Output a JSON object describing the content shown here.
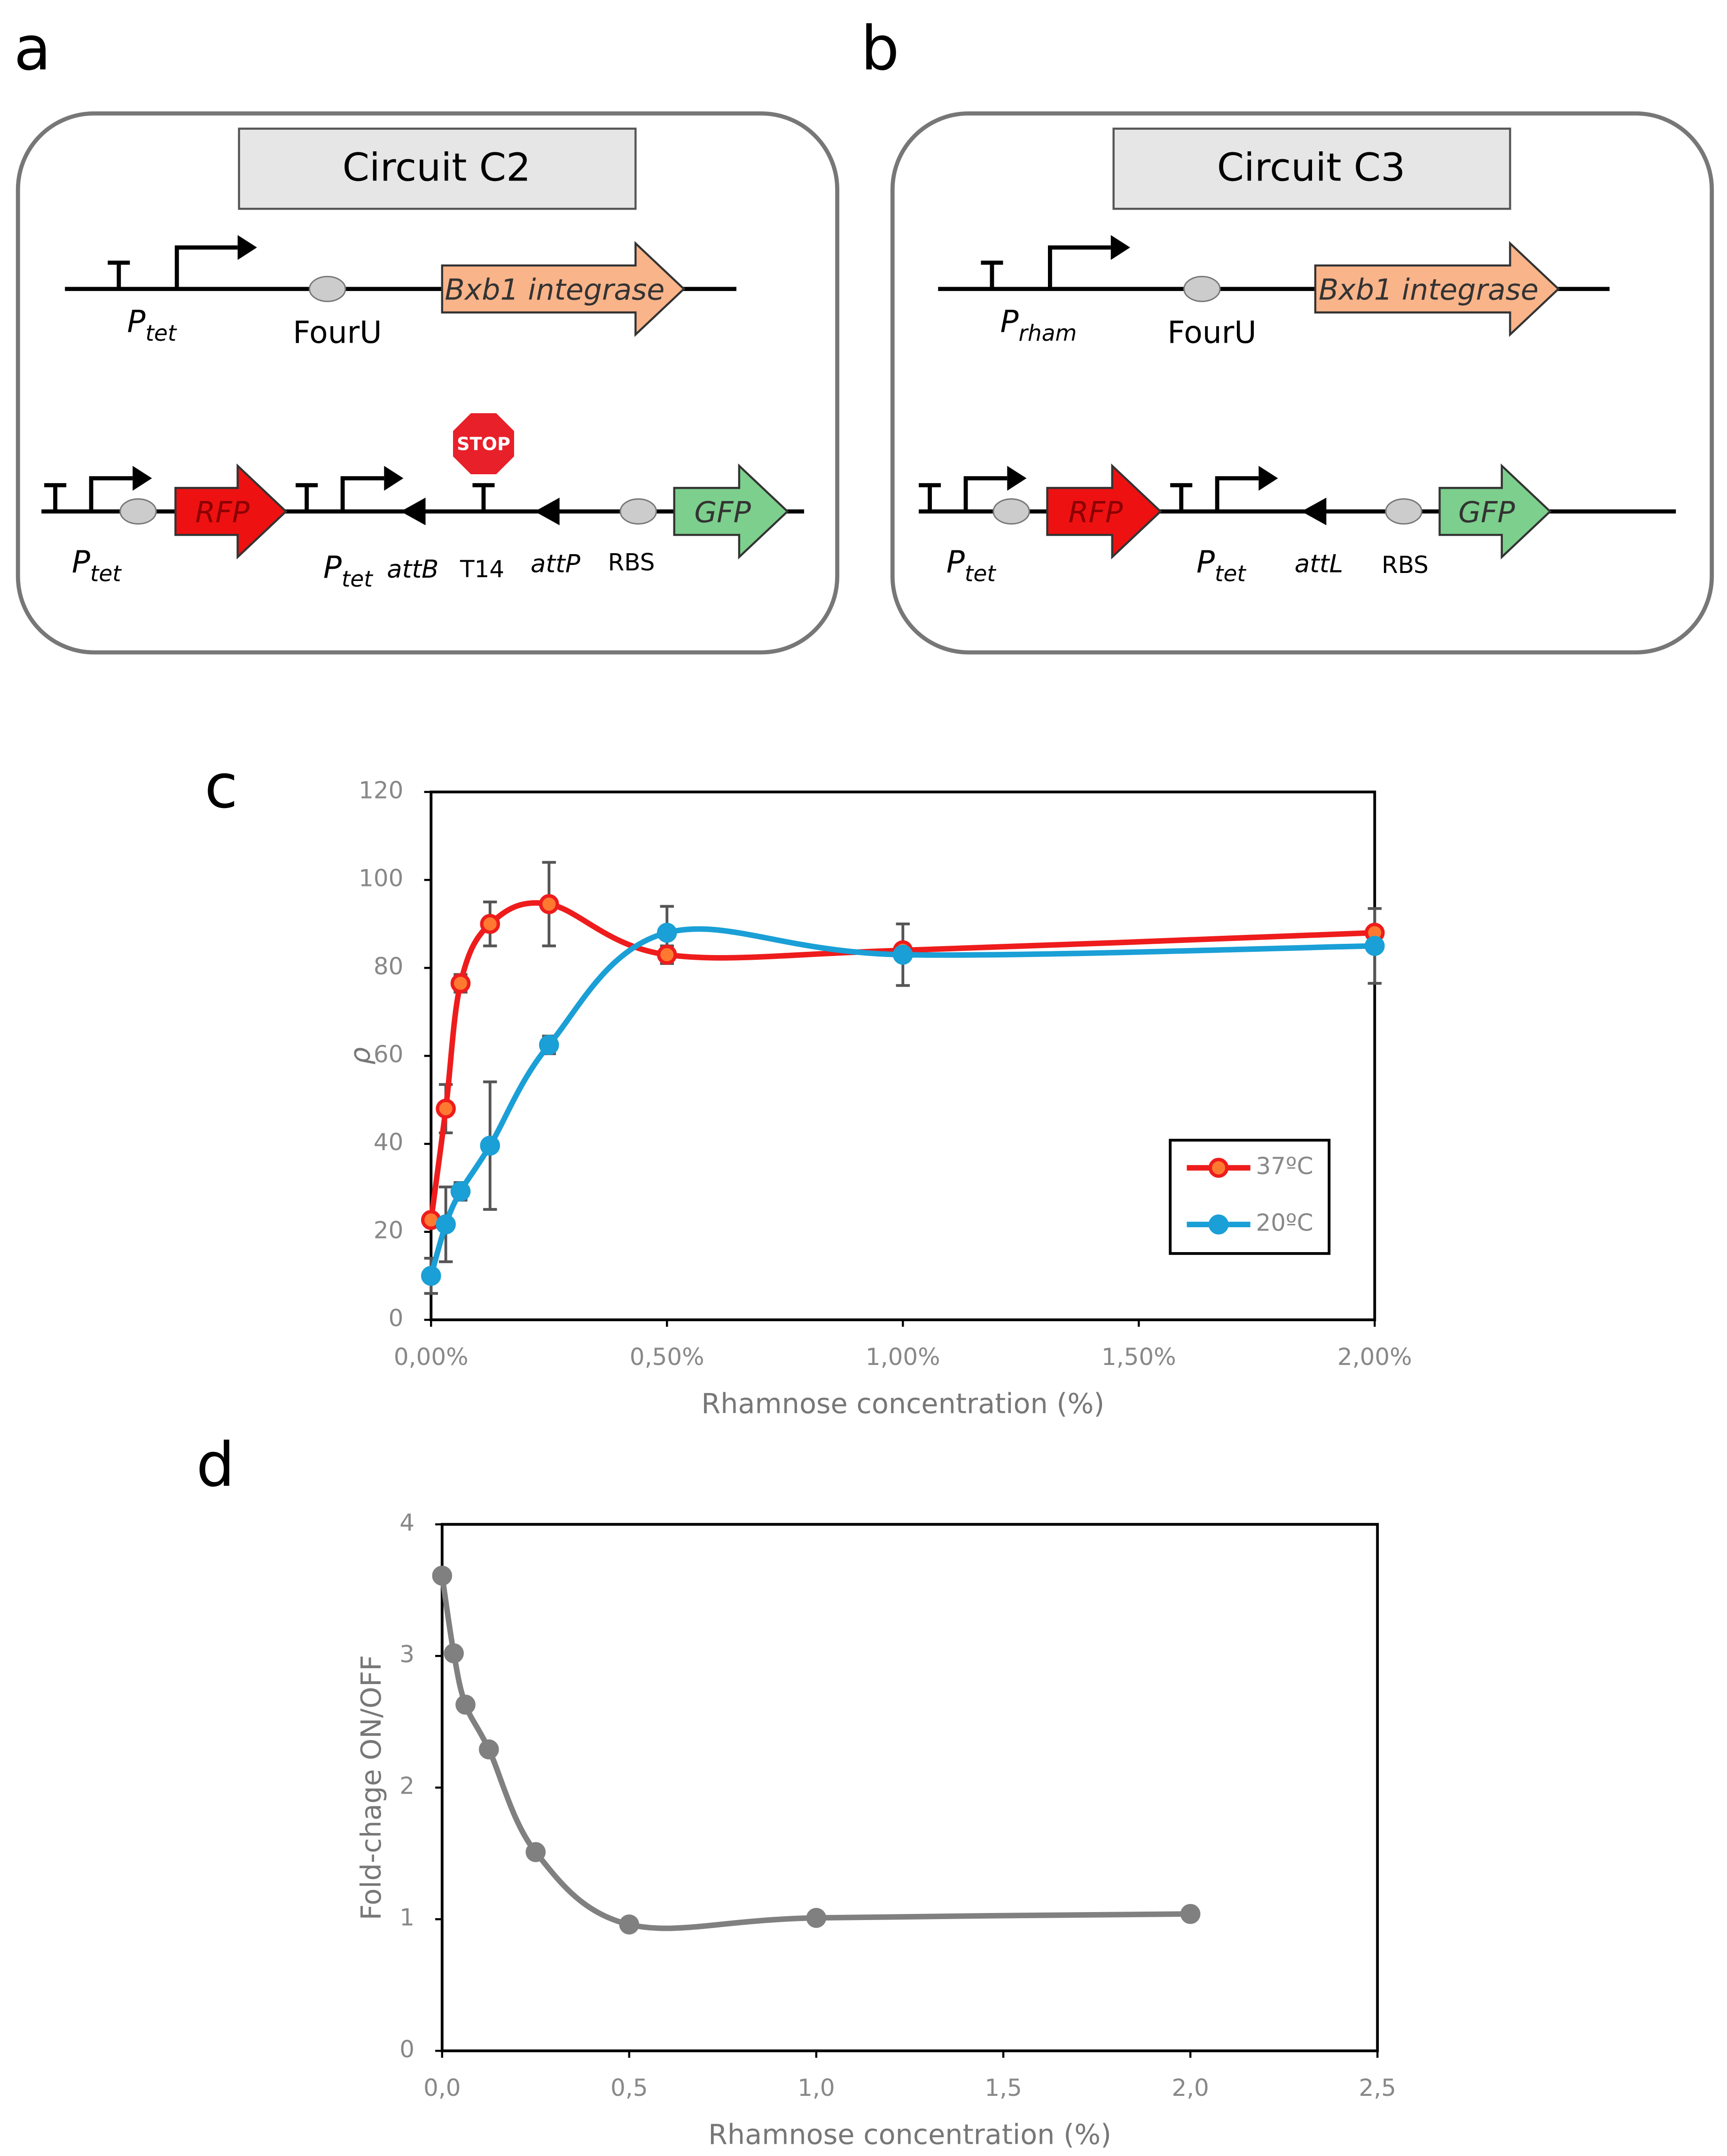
{
  "panels": [
    "a",
    "b",
    "c",
    "d"
  ],
  "diagrams": [
    {
      "title": "Circuit C2",
      "genes": [
        "Bxb1 integrase",
        "RFP",
        "GFP"
      ],
      "stop": "STOP",
      "labels": [
        {
          "main": "P",
          "sub": "tet"
        },
        "FourU",
        {
          "main": "P",
          "sub": "tet"
        },
        {
          "main": "P",
          "sub": "tet"
        },
        "attB",
        "T14",
        "attP",
        "RBS"
      ]
    },
    {
      "title": "Circuit C3",
      "genes": [
        "Bxb1 integrase",
        "RFP",
        "GFP"
      ],
      "labels": [
        {
          "main": "P",
          "sub": "rham"
        },
        "FourU",
        {
          "main": "P",
          "sub": "tet"
        },
        {
          "main": "P",
          "sub": "tet"
        },
        "attL",
        "RBS"
      ]
    }
  ],
  "chart_data": [
    {
      "type": "line",
      "x": [
        0,
        0.03125,
        0.0625,
        0.125,
        0.25,
        0.5,
        1,
        2
      ],
      "series": [
        {
          "name": "37ºC",
          "color": "#ee1c1c",
          "values": [
            22.7,
            48,
            76.5,
            90,
            94.5,
            83,
            84,
            88
          ],
          "errors": [
            0,
            5.5,
            2,
            5,
            9.5,
            2,
            1,
            1
          ]
        },
        {
          "name": "20ºC",
          "color": "#1a9fd6",
          "values": [
            10,
            21.7,
            29.2,
            39.6,
            62.5,
            88,
            83,
            85
          ],
          "errors": [
            4,
            8.5,
            2,
            14.5,
            2,
            6,
            7,
            8.5
          ]
        }
      ],
      "xlabel": "Rhamnose concentration (%)",
      "ylabel": "ρ",
      "xlim": [
        0,
        2
      ],
      "xticks": [
        {
          "value": 0,
          "label": "0,00%"
        },
        {
          "value": 0.5,
          "label": "0,50%"
        },
        {
          "value": 1,
          "label": "1,00%"
        },
        {
          "value": 1.5,
          "label": "1,50%"
        },
        {
          "value": 2,
          "label": "2,00%"
        }
      ],
      "ylim": [
        0,
        120
      ],
      "yticks": [
        0,
        20,
        40,
        60,
        80,
        100,
        120
      ],
      "legend": "right"
    },
    {
      "type": "line",
      "x": [
        0,
        0.03125,
        0.0625,
        0.125,
        0.25,
        0.5,
        1,
        2
      ],
      "series": [
        {
          "color": "#808080",
          "values": [
            3.61,
            3.02,
            2.63,
            2.29,
            1.51,
            0.96,
            1.01,
            1.04
          ]
        }
      ],
      "xlabel": "Rhamnose concentration (%)",
      "ylabel": "Fold-chage ON/OFF",
      "xlim": [
        0,
        2.5
      ],
      "xticks": [
        {
          "value": 0,
          "label": "0,0"
        },
        {
          "value": 0.5,
          "label": "0,5"
        },
        {
          "value": 1,
          "label": "1,0"
        },
        {
          "value": 1.5,
          "label": "1,5"
        },
        {
          "value": 2,
          "label": "2,0"
        },
        {
          "value": 2.5,
          "label": "2,5"
        }
      ],
      "ylim": [
        0,
        4
      ],
      "yticks": [
        0,
        1,
        2,
        3,
        4
      ]
    }
  ]
}
